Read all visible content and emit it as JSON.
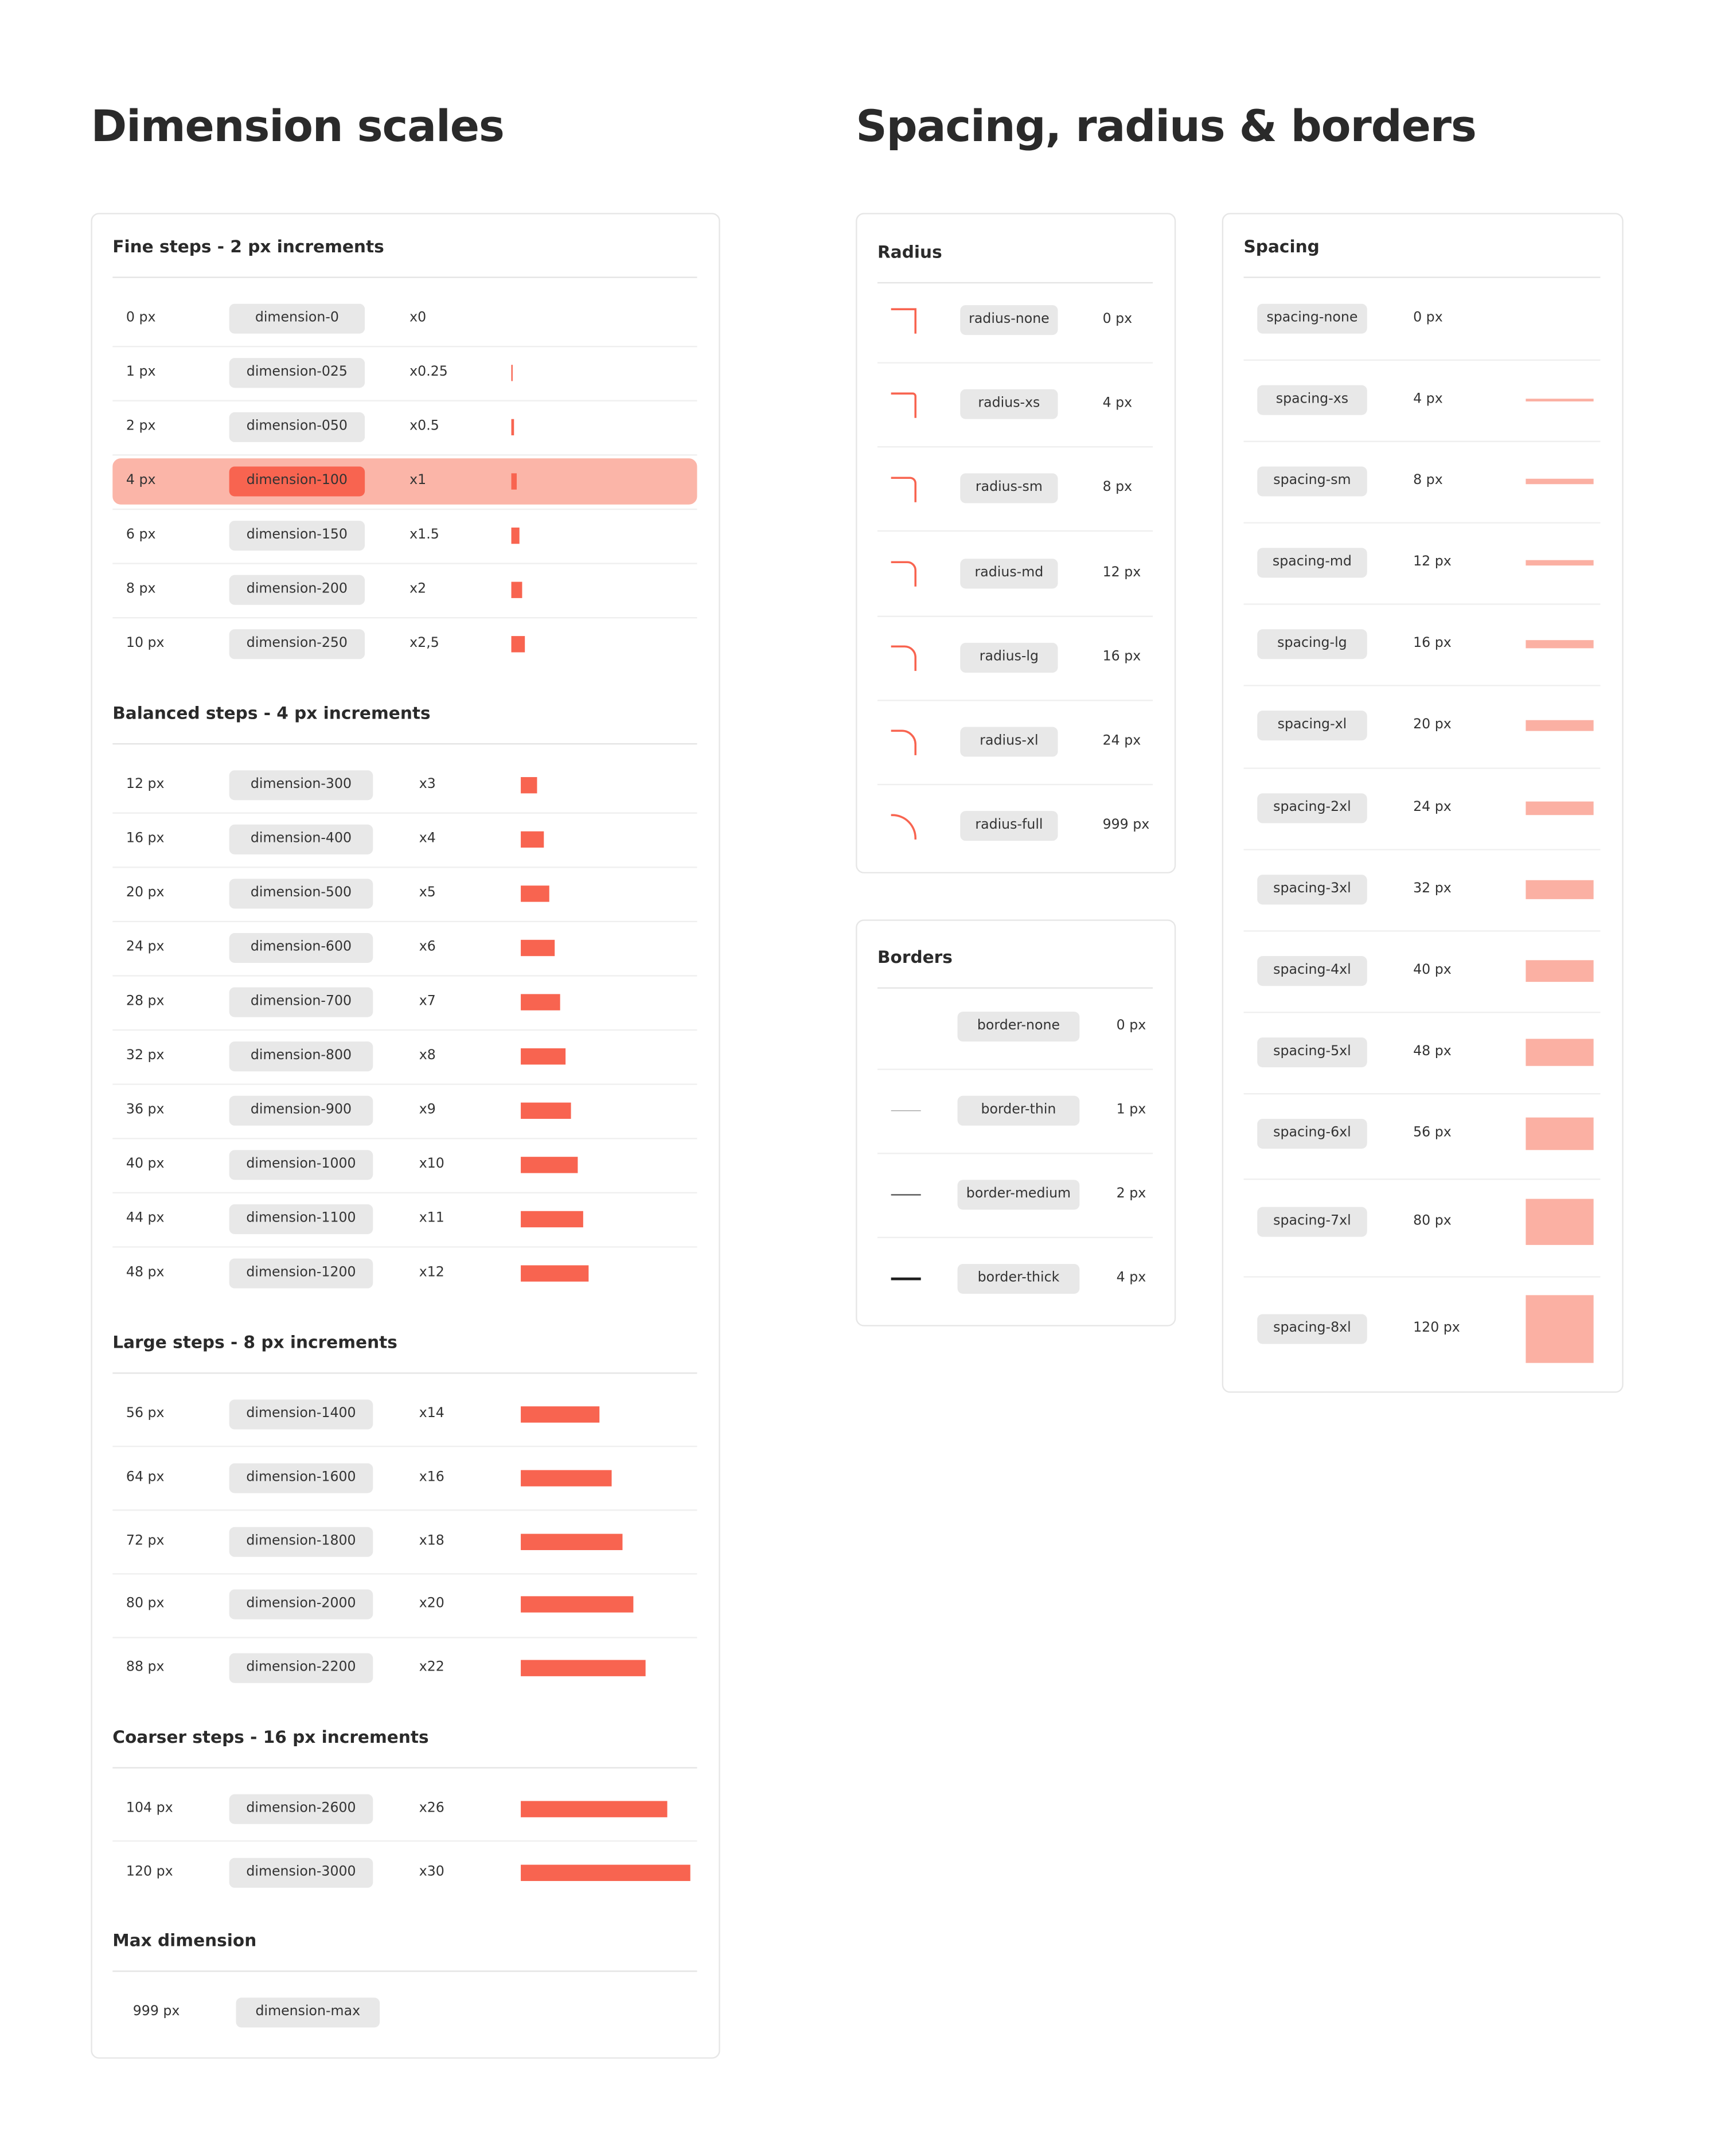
{
  "left": {
    "title": "Dimension scales",
    "sections": [
      {
        "heading": "Fine steps - 2 px increments",
        "rows": [
          {
            "size": "0 px",
            "value": 0,
            "token": "dimension-0",
            "multiplier": "x0"
          },
          {
            "size": "1 px",
            "value": 1,
            "token": "dimension-025",
            "multiplier": "x0.25"
          },
          {
            "size": "2 px",
            "value": 2,
            "token": "dimension-050",
            "multiplier": "x0.5"
          },
          {
            "size": "4 px",
            "value": 4,
            "token": "dimension-100",
            "multiplier": "x1",
            "highlighted": true
          },
          {
            "size": "6 px",
            "value": 6,
            "token": "dimension-150",
            "multiplier": "x1.5"
          },
          {
            "size": "8 px",
            "value": 8,
            "token": "dimension-200",
            "multiplier": "x2"
          },
          {
            "size": "10 px",
            "value": 10,
            "token": "dimension-250",
            "multiplier": "x2,5"
          }
        ]
      },
      {
        "heading": "Balanced steps - 4 px increments",
        "rows": [
          {
            "size": "12 px",
            "value": 12,
            "token": "dimension-300",
            "multiplier": "x3"
          },
          {
            "size": "16 px",
            "value": 16,
            "token": "dimension-400",
            "multiplier": "x4"
          },
          {
            "size": "20 px",
            "value": 20,
            "token": "dimension-500",
            "multiplier": "x5"
          },
          {
            "size": "24 px",
            "value": 24,
            "token": "dimension-600",
            "multiplier": "x6"
          },
          {
            "size": "28 px",
            "value": 28,
            "token": "dimension-700",
            "multiplier": "x7"
          },
          {
            "size": "32 px",
            "value": 32,
            "token": "dimension-800",
            "multiplier": "x8"
          },
          {
            "size": "36 px",
            "value": 36,
            "token": "dimension-900",
            "multiplier": "x9"
          },
          {
            "size": "40 px",
            "value": 40,
            "token": "dimension-1000",
            "multiplier": "x10"
          },
          {
            "size": "44 px",
            "value": 44,
            "token": "dimension-1100",
            "multiplier": "x11"
          },
          {
            "size": "48 px",
            "value": 48,
            "token": "dimension-1200",
            "multiplier": "x12"
          }
        ]
      },
      {
        "heading": "Large steps - 8 px increments",
        "rows": [
          {
            "size": "56 px",
            "value": 56,
            "token": "dimension-1400",
            "multiplier": "x14"
          },
          {
            "size": "64 px",
            "value": 64,
            "token": "dimension-1600",
            "multiplier": "x16"
          },
          {
            "size": "72 px",
            "value": 72,
            "token": "dimension-1800",
            "multiplier": "x18"
          },
          {
            "size": "80 px",
            "value": 80,
            "token": "dimension-2000",
            "multiplier": "x20"
          },
          {
            "size": "88 px",
            "value": 88,
            "token": "dimension-2200",
            "multiplier": "x22"
          }
        ]
      },
      {
        "heading": "Coarser steps - 16 px increments",
        "rows": [
          {
            "size": "104 px",
            "value": 104,
            "token": "dimension-2600",
            "multiplier": "x26"
          },
          {
            "size": "120 px",
            "value": 120,
            "token": "dimension-3000",
            "multiplier": "x30"
          }
        ]
      },
      {
        "heading": "Max dimension",
        "rows": [
          {
            "size": "999 px",
            "token": "dimension-max"
          }
        ]
      }
    ]
  },
  "right": {
    "title": "Spacing, radius & borders",
    "radius": {
      "heading": "Radius",
      "rows": [
        {
          "token": "radius-none",
          "size": "0 px"
        },
        {
          "token": "radius-xs",
          "size": "4 px"
        },
        {
          "token": "radius-sm",
          "size": "8 px"
        },
        {
          "token": "radius-md",
          "size": "12 px"
        },
        {
          "token": "radius-lg",
          "size": "16 px"
        },
        {
          "token": "radius-xl",
          "size": "24 px"
        },
        {
          "token": "radius-full",
          "size": "999 px"
        }
      ]
    },
    "borders": {
      "heading": "Borders",
      "rows": [
        {
          "token": "border-none",
          "size": "0 px"
        },
        {
          "token": "border-thin",
          "size": "1 px"
        },
        {
          "token": "border-medium",
          "size": "2 px"
        },
        {
          "token": "border-thick",
          "size": "4 px"
        }
      ]
    },
    "spacing": {
      "heading": "Spacing",
      "rows": [
        {
          "token": "spacing-none",
          "size": "0 px",
          "value": 0
        },
        {
          "token": "spacing-xs",
          "size": "4 px",
          "value": 4
        },
        {
          "token": "spacing-sm",
          "size": "8 px",
          "value": 8
        },
        {
          "token": "spacing-md",
          "size": "12 px",
          "value": 12
        },
        {
          "token": "spacing-lg",
          "size": "16 px",
          "value": 16
        },
        {
          "token": "spacing-xl",
          "size": "20 px",
          "value": 20
        },
        {
          "token": "spacing-2xl",
          "size": "24 px",
          "value": 24
        },
        {
          "token": "spacing-3xl",
          "size": "32 px",
          "value": 32
        },
        {
          "token": "spacing-4xl",
          "size": "40 px",
          "value": 40
        },
        {
          "token": "spacing-5xl",
          "size": "48 px",
          "value": 48
        },
        {
          "token": "spacing-6xl",
          "size": "56 px",
          "value": 56
        },
        {
          "token": "spacing-7xl",
          "size": "80 px",
          "value": 80
        },
        {
          "token": "spacing-8xl",
          "size": "120 px",
          "value": 120
        }
      ]
    }
  }
}
